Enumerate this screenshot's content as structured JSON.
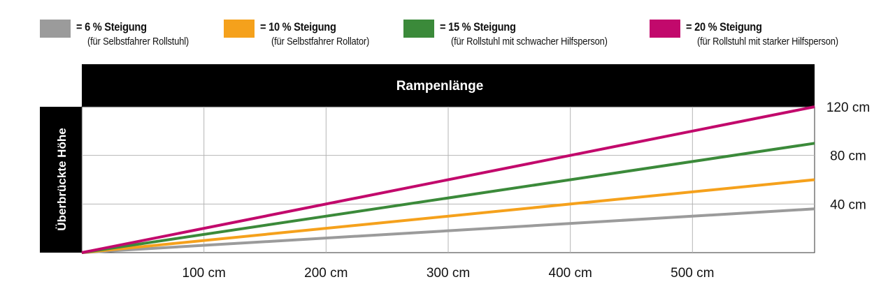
{
  "legend": [
    {
      "label": "= 6 % Steigung",
      "sub": "(für Selbstfahrer Rollstuhl)",
      "color": "#9b9b9b"
    },
    {
      "label": "= 10 % Steigung",
      "sub": "(für Selbstfahrer Rollator)",
      "color": "#f5a11c"
    },
    {
      "label": "= 15 % Steigung",
      "sub": "(für Rollstuhl mit schwacher Hilfsperson)",
      "color": "#3b8a3a"
    },
    {
      "label": "= 20 % Steigung",
      "sub": "(für Rollstuhl mit starker Hilfsperson)",
      "color": "#c2096c"
    }
  ],
  "chart_data": {
    "type": "line",
    "title": "Rampenlänge",
    "ylabel": "Überbrückte Höhe",
    "xlim": [
      0,
      600
    ],
    "ylim": [
      0,
      120
    ],
    "x_ticks": [
      100,
      200,
      300,
      400,
      500
    ],
    "x_tick_labels": [
      "100 cm",
      "200 cm",
      "300 cm",
      "400 cm",
      "500 cm"
    ],
    "y_ticks": [
      40,
      80,
      120
    ],
    "y_tick_labels": [
      "40 cm",
      "80 cm",
      "120 cm"
    ],
    "grid": true,
    "legend_position": "top",
    "series": [
      {
        "name": "= 6 % Steigung",
        "color": "#9b9b9b",
        "points": [
          [
            0,
            0
          ],
          [
            600,
            36
          ]
        ]
      },
      {
        "name": "= 10 % Steigung",
        "color": "#f5a11c",
        "points": [
          [
            0,
            0
          ],
          [
            600,
            60
          ]
        ]
      },
      {
        "name": "= 15 % Steigung",
        "color": "#3b8a3a",
        "points": [
          [
            0,
            0
          ],
          [
            600,
            90
          ]
        ]
      },
      {
        "name": "= 20 % Steigung",
        "color": "#c2096c",
        "points": [
          [
            0,
            0
          ],
          [
            600,
            120
          ]
        ]
      }
    ]
  }
}
